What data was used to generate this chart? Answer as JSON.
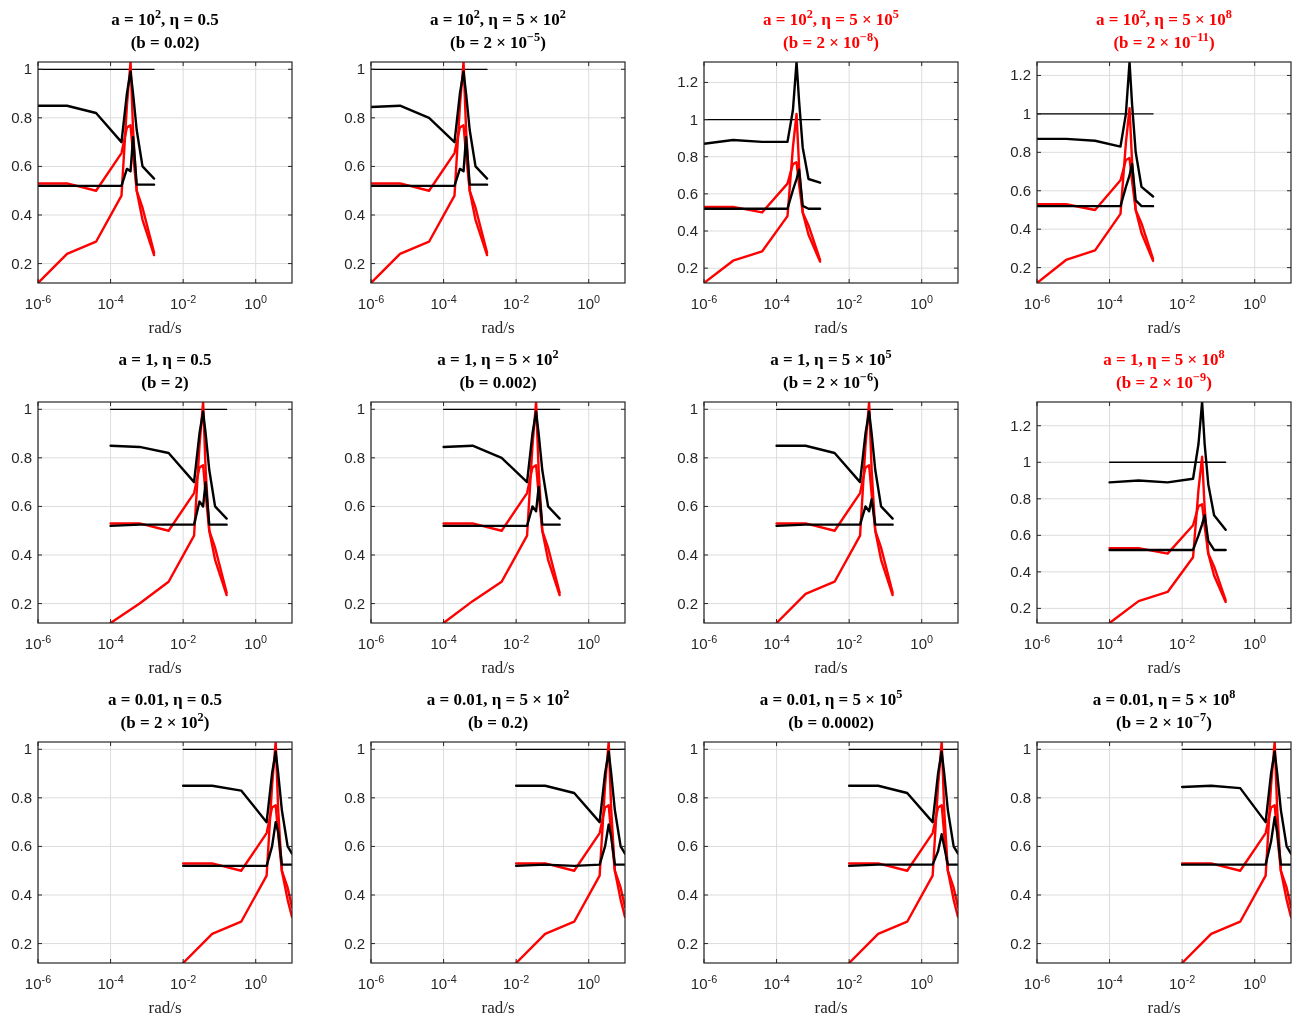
{
  "chart_data": [
    {
      "type": "line",
      "title": "a = 10$^{2}$, η = 0.5",
      "subtitle": "(b = 0.02)",
      "xlabel": "rad/s",
      "log": "x",
      "grid": true,
      "xlim": [
        1e-06,
        10
      ],
      "ylim": [
        0.12,
        1.03
      ],
      "xticks": [
        {
          "value": 1e-06,
          "label": "10$^{-6}$"
        },
        {
          "value": 0.0001,
          "label": "10$^{-4}$"
        },
        {
          "value": 0.01,
          "label": "10$^{-2}$"
        },
        {
          "value": 1,
          "label": "10$^{0}$"
        }
      ],
      "yticks": [
        0.2,
        0.4,
        0.6,
        0.8,
        1
      ],
      "x": [
        1e-06,
        6.31e-06,
        3.98e-05,
        0.0002,
        0.000282,
        0.000355,
        0.000417,
        0.000525,
        0.000759,
        0.00158
      ],
      "series": [
        {
          "color": "#000000",
          "values": [
            1,
            1,
            1,
            1,
            1,
            1,
            1,
            1,
            1,
            1
          ]
        },
        {
          "color": "#ff0000",
          "values": [
            0.12,
            0.24,
            0.29,
            0.48,
            0.85,
            1.03,
            0.75,
            0.5,
            0.38,
            0.235
          ]
        },
        {
          "color": "#ff0000",
          "values": [
            0.53,
            0.53,
            0.5,
            0.655,
            0.76,
            0.77,
            0.65,
            0.5,
            0.43,
            0.245
          ]
        },
        {
          "color": "#000000",
          "values": [
            0.85,
            0.85,
            0.82,
            0.7,
            0.9,
            0.99,
            0.9,
            0.75,
            0.6,
            0.55
          ]
        },
        {
          "color": "#000000",
          "values": [
            0.52,
            0.52,
            0.52,
            0.52,
            0.59,
            0.58,
            0.72,
            0.525,
            0.525,
            0.525
          ]
        }
      ]
    },
    {
      "type": "line",
      "title": "a = 10$^{2}$, η = 5 × 10$^{2}$",
      "subtitle": "(b = 2 × 10$^{−5}$)",
      "xlabel": "rad/s",
      "log": "x",
      "grid": true,
      "xlim": [
        1e-06,
        10
      ],
      "ylim": [
        0.12,
        1.03
      ],
      "xticks": [
        {
          "value": 1e-06,
          "label": "10$^{-6}$"
        },
        {
          "value": 0.0001,
          "label": "10$^{-4}$"
        },
        {
          "value": 0.01,
          "label": "10$^{-2}$"
        },
        {
          "value": 1,
          "label": "10$^{0}$"
        }
      ],
      "yticks": [
        0.2,
        0.4,
        0.6,
        0.8,
        1
      ],
      "x": [
        1e-06,
        6.31e-06,
        3.98e-05,
        0.0002,
        0.000282,
        0.000355,
        0.000417,
        0.000525,
        0.000759,
        0.00158
      ],
      "series": [
        {
          "color": "#000000",
          "values": [
            1,
            1,
            1,
            1,
            1,
            1,
            1,
            1,
            1,
            1
          ]
        },
        {
          "color": "#ff0000",
          "values": [
            0.12,
            0.24,
            0.29,
            0.48,
            0.85,
            1.03,
            0.75,
            0.5,
            0.38,
            0.235
          ]
        },
        {
          "color": "#ff0000",
          "values": [
            0.53,
            0.53,
            0.5,
            0.655,
            0.76,
            0.77,
            0.65,
            0.5,
            0.43,
            0.245
          ]
        },
        {
          "color": "#000000",
          "values": [
            0.845,
            0.85,
            0.8,
            0.7,
            0.9,
            0.99,
            0.9,
            0.75,
            0.6,
            0.55
          ]
        },
        {
          "color": "#000000",
          "values": [
            0.52,
            0.52,
            0.52,
            0.52,
            0.59,
            0.58,
            0.72,
            0.525,
            0.525,
            0.525
          ]
        }
      ]
    },
    {
      "type": "line",
      "title": "a = 10$^{2}$, η = 5 × 10$^{5}$",
      "subtitle": "(b = 2 × 10$^{−8}$)",
      "xlabel": "rad/s",
      "log": "x",
      "grid": true,
      "xlim": [
        1e-06,
        10
      ],
      "ylim": [
        0.12,
        1.31
      ],
      "xticks": [
        {
          "value": 1e-06,
          "label": "10$^{-6}$"
        },
        {
          "value": 0.0001,
          "label": "10$^{-4}$"
        },
        {
          "value": 0.01,
          "label": "10$^{-2}$"
        },
        {
          "value": 1,
          "label": "10$^{0}$"
        }
      ],
      "yticks": [
        0.2,
        0.4,
        0.6,
        0.8,
        1,
        1.2
      ],
      "x": [
        1e-06,
        6.31e-06,
        3.98e-05,
        0.0002,
        0.000282,
        0.000355,
        0.000417,
        0.000525,
        0.000759,
        0.00158
      ],
      "series": [
        {
          "color": "#000000",
          "values": [
            1,
            1,
            1,
            1,
            1,
            1,
            1,
            1,
            1,
            1
          ]
        },
        {
          "color": "#ff0000",
          "values": [
            0.12,
            0.24,
            0.29,
            0.48,
            0.85,
            1.03,
            0.75,
            0.5,
            0.38,
            0.235
          ]
        },
        {
          "color": "#ff0000",
          "values": [
            0.53,
            0.53,
            0.5,
            0.655,
            0.76,
            0.77,
            0.65,
            0.5,
            0.43,
            0.245
          ]
        },
        {
          "color": "#000000",
          "values": [
            0.87,
            0.89,
            0.88,
            0.88,
            1.05,
            1.31,
            1.1,
            0.85,
            0.68,
            0.66
          ]
        },
        {
          "color": "#000000",
          "values": [
            0.52,
            0.52,
            0.52,
            0.52,
            0.62,
            0.68,
            0.73,
            0.535,
            0.52,
            0.52
          ]
        }
      ]
    },
    {
      "type": "line",
      "title": "a = 10$^{2}$, η = 5 × 10$^{8}$",
      "subtitle": "(b = 2 × 10$^{−11}$)",
      "xlabel": "rad/s",
      "log": "x",
      "grid": true,
      "xlim": [
        1e-06,
        10
      ],
      "ylim": [
        0.12,
        1.27
      ],
      "xticks": [
        {
          "value": 1e-06,
          "label": "10$^{-6}$"
        },
        {
          "value": 0.0001,
          "label": "10$^{-4}$"
        },
        {
          "value": 0.01,
          "label": "10$^{-2}$"
        },
        {
          "value": 1,
          "label": "10$^{0}$"
        }
      ],
      "yticks": [
        0.2,
        0.4,
        0.6,
        0.8,
        1,
        1.2
      ],
      "x": [
        1e-06,
        6.31e-06,
        3.98e-05,
        0.0002,
        0.000282,
        0.000355,
        0.000417,
        0.000525,
        0.000759,
        0.00158
      ],
      "series": [
        {
          "color": "#000000",
          "values": [
            1,
            1,
            1,
            1,
            1,
            1,
            1,
            1,
            1,
            1
          ]
        },
        {
          "color": "#ff0000",
          "values": [
            0.12,
            0.24,
            0.29,
            0.48,
            0.85,
            1.03,
            0.75,
            0.5,
            0.38,
            0.235
          ]
        },
        {
          "color": "#ff0000",
          "values": [
            0.53,
            0.53,
            0.5,
            0.655,
            0.76,
            0.77,
            0.65,
            0.5,
            0.43,
            0.245
          ]
        },
        {
          "color": "#000000",
          "values": [
            0.87,
            0.87,
            0.86,
            0.83,
            1,
            1.27,
            1.05,
            0.8,
            0.62,
            0.57
          ]
        },
        {
          "color": "#000000",
          "values": [
            0.52,
            0.52,
            0.52,
            0.52,
            0.62,
            0.68,
            0.74,
            0.55,
            0.52,
            0.52
          ]
        }
      ]
    },
    {
      "type": "line",
      "title": "a = 1, η = 0.5",
      "subtitle": "(b = 2)",
      "xlabel": "rad/s",
      "log": "x",
      "grid": true,
      "xlim": [
        1e-06,
        10
      ],
      "ylim": [
        0.12,
        1.03
      ],
      "xticks": [
        {
          "value": 1e-06,
          "label": "10$^{-6}$"
        },
        {
          "value": 0.0001,
          "label": "10$^{-4}$"
        },
        {
          "value": 0.01,
          "label": "10$^{-2}$"
        },
        {
          "value": 1,
          "label": "10$^{0}$"
        }
      ],
      "yticks": [
        0.2,
        0.4,
        0.6,
        0.8,
        1
      ],
      "x": [
        0.0001,
        0.000631,
        0.00398,
        0.02,
        0.0282,
        0.0355,
        0.0417,
        0.0525,
        0.0759,
        0.158
      ],
      "series": [
        {
          "color": "#000000",
          "values": [
            1,
            1,
            1,
            1,
            1,
            1,
            1,
            1,
            1,
            1
          ]
        },
        {
          "color": "#ff0000",
          "values": [
            0.12,
            0.2,
            0.29,
            0.48,
            0.85,
            1.03,
            0.75,
            0.5,
            0.38,
            0.235
          ]
        },
        {
          "color": "#ff0000",
          "values": [
            0.53,
            0.53,
            0.5,
            0.655,
            0.76,
            0.77,
            0.65,
            0.5,
            0.43,
            0.245
          ]
        },
        {
          "color": "#000000",
          "values": [
            0.85,
            0.845,
            0.82,
            0.7,
            0.9,
            0.99,
            0.9,
            0.75,
            0.6,
            0.55
          ]
        },
        {
          "color": "#000000",
          "values": [
            0.52,
            0.525,
            0.525,
            0.525,
            0.62,
            0.6,
            0.7,
            0.525,
            0.525,
            0.525
          ]
        }
      ]
    },
    {
      "type": "line",
      "title": "a = 1, η = 5 × 10$^{2}$",
      "subtitle": "(b = 0.002)",
      "xlabel": "rad/s",
      "log": "x",
      "grid": true,
      "xlim": [
        1e-06,
        10
      ],
      "ylim": [
        0.12,
        1.03
      ],
      "xticks": [
        {
          "value": 1e-06,
          "label": "10$^{-6}$"
        },
        {
          "value": 0.0001,
          "label": "10$^{-4}$"
        },
        {
          "value": 0.01,
          "label": "10$^{-2}$"
        },
        {
          "value": 1,
          "label": "10$^{0}$"
        }
      ],
      "yticks": [
        0.2,
        0.4,
        0.6,
        0.8,
        1
      ],
      "x": [
        0.0001,
        0.000631,
        0.00398,
        0.02,
        0.0282,
        0.0355,
        0.0417,
        0.0525,
        0.0759,
        0.158
      ],
      "series": [
        {
          "color": "#000000",
          "values": [
            1,
            1,
            1,
            1,
            1,
            1,
            1,
            1,
            1,
            1
          ]
        },
        {
          "color": "#ff0000",
          "values": [
            0.12,
            0.21,
            0.29,
            0.48,
            0.85,
            1.03,
            0.75,
            0.5,
            0.38,
            0.235
          ]
        },
        {
          "color": "#ff0000",
          "values": [
            0.53,
            0.53,
            0.5,
            0.655,
            0.76,
            0.77,
            0.65,
            0.5,
            0.43,
            0.245
          ]
        },
        {
          "color": "#000000",
          "values": [
            0.845,
            0.85,
            0.8,
            0.7,
            0.9,
            0.99,
            0.9,
            0.75,
            0.6,
            0.55
          ]
        },
        {
          "color": "#000000",
          "values": [
            0.52,
            0.52,
            0.52,
            0.52,
            0.6,
            0.58,
            0.68,
            0.525,
            0.525,
            0.525
          ]
        }
      ]
    },
    {
      "type": "line",
      "title": "a = 1, η = 5 × 10$^{5}$",
      "subtitle": "(b = 2 × 10$^{−6}$)",
      "xlabel": "rad/s",
      "log": "x",
      "grid": true,
      "xlim": [
        1e-06,
        10
      ],
      "ylim": [
        0.12,
        1.03
      ],
      "xticks": [
        {
          "value": 1e-06,
          "label": "10$^{-6}$"
        },
        {
          "value": 0.0001,
          "label": "10$^{-4}$"
        },
        {
          "value": 0.01,
          "label": "10$^{-2}$"
        },
        {
          "value": 1,
          "label": "10$^{0}$"
        }
      ],
      "yticks": [
        0.2,
        0.4,
        0.6,
        0.8,
        1
      ],
      "x": [
        0.0001,
        0.000631,
        0.00398,
        0.02,
        0.0282,
        0.0355,
        0.0417,
        0.0525,
        0.0759,
        0.158
      ],
      "series": [
        {
          "color": "#000000",
          "values": [
            1,
            1,
            1,
            1,
            1,
            1,
            1,
            1,
            1,
            1
          ]
        },
        {
          "color": "#ff0000",
          "values": [
            0.12,
            0.24,
            0.29,
            0.48,
            0.85,
            1.03,
            0.75,
            0.5,
            0.38,
            0.235
          ]
        },
        {
          "color": "#ff0000",
          "values": [
            0.53,
            0.53,
            0.5,
            0.655,
            0.76,
            0.77,
            0.65,
            0.5,
            0.43,
            0.245
          ]
        },
        {
          "color": "#000000",
          "values": [
            0.85,
            0.85,
            0.82,
            0.7,
            0.9,
            0.99,
            0.9,
            0.75,
            0.6,
            0.55
          ]
        },
        {
          "color": "#000000",
          "values": [
            0.52,
            0.525,
            0.525,
            0.525,
            0.6,
            0.58,
            0.63,
            0.525,
            0.525,
            0.525
          ]
        }
      ]
    },
    {
      "type": "line",
      "title": "a = 1, η = 5 × 10$^{8}$",
      "subtitle": "(b = 2 × 10$^{−9}$)",
      "xlabel": "rad/s",
      "log": "x",
      "grid": true,
      "xlim": [
        1e-06,
        10
      ],
      "ylim": [
        0.12,
        1.33
      ],
      "xticks": [
        {
          "value": 1e-06,
          "label": "10$^{-6}$"
        },
        {
          "value": 0.0001,
          "label": "10$^{-4}$"
        },
        {
          "value": 0.01,
          "label": "10$^{-2}$"
        },
        {
          "value": 1,
          "label": "10$^{0}$"
        }
      ],
      "yticks": [
        0.2,
        0.4,
        0.6,
        0.8,
        1,
        1.2
      ],
      "x": [
        0.0001,
        0.000631,
        0.00398,
        0.02,
        0.0282,
        0.0355,
        0.0417,
        0.0525,
        0.0759,
        0.158
      ],
      "series": [
        {
          "color": "#000000",
          "values": [
            1,
            1,
            1,
            1,
            1,
            1,
            1,
            1,
            1,
            1
          ]
        },
        {
          "color": "#ff0000",
          "values": [
            0.12,
            0.24,
            0.29,
            0.48,
            0.85,
            1.03,
            0.75,
            0.5,
            0.38,
            0.235
          ]
        },
        {
          "color": "#ff0000",
          "values": [
            0.53,
            0.53,
            0.5,
            0.655,
            0.76,
            0.77,
            0.65,
            0.5,
            0.43,
            0.245
          ]
        },
        {
          "color": "#000000",
          "values": [
            0.89,
            0.9,
            0.89,
            0.91,
            1.1,
            1.33,
            1.1,
            0.88,
            0.71,
            0.63
          ]
        },
        {
          "color": "#000000",
          "values": [
            0.52,
            0.52,
            0.52,
            0.52,
            0.6,
            0.66,
            0.71,
            0.57,
            0.52,
            0.52
          ]
        }
      ]
    },
    {
      "type": "line",
      "title": "a = 0.01, η = 0.5",
      "subtitle": "(b = 2 × 10$^{2}$)",
      "xlabel": "rad/s",
      "log": "x",
      "grid": true,
      "xlim": [
        1e-06,
        10
      ],
      "ylim": [
        0.12,
        1.03
      ],
      "xticks": [
        {
          "value": 1e-06,
          "label": "10$^{-6}$"
        },
        {
          "value": 0.0001,
          "label": "10$^{-4}$"
        },
        {
          "value": 0.01,
          "label": "10$^{-2}$"
        },
        {
          "value": 1,
          "label": "10$^{0}$"
        }
      ],
      "yticks": [
        0.2,
        0.4,
        0.6,
        0.8,
        1
      ],
      "x": [
        0.01,
        0.0631,
        0.398,
        2,
        2.82,
        3.55,
        4.17,
        5.25,
        7.59,
        10
      ],
      "series": [
        {
          "color": "#000000",
          "values": [
            1,
            1,
            1,
            1,
            1,
            1,
            1,
            1,
            1,
            1
          ]
        },
        {
          "color": "#ff0000",
          "values": [
            0.12,
            0.24,
            0.29,
            0.48,
            0.85,
            1.03,
            0.75,
            0.5,
            0.38,
            0.31
          ]
        },
        {
          "color": "#ff0000",
          "values": [
            0.53,
            0.53,
            0.5,
            0.655,
            0.76,
            0.77,
            0.65,
            0.5,
            0.43,
            0.35
          ]
        },
        {
          "color": "#000000",
          "values": [
            0.85,
            0.85,
            0.83,
            0.7,
            0.9,
            0.99,
            0.9,
            0.75,
            0.6,
            0.57
          ]
        },
        {
          "color": "#000000",
          "values": [
            0.52,
            0.52,
            0.52,
            0.52,
            0.6,
            0.7,
            0.66,
            0.525,
            0.525,
            0.525
          ]
        }
      ]
    },
    {
      "type": "line",
      "title": "a = 0.01, η = 5 × 10$^{2}$",
      "subtitle": "(b = 0.2)",
      "xlabel": "rad/s",
      "log": "x",
      "grid": true,
      "xlim": [
        1e-06,
        10
      ],
      "ylim": [
        0.12,
        1.03
      ],
      "xticks": [
        {
          "value": 1e-06,
          "label": "10$^{-6}$"
        },
        {
          "value": 0.0001,
          "label": "10$^{-4}$"
        },
        {
          "value": 0.01,
          "label": "10$^{-2}$"
        },
        {
          "value": 1,
          "label": "10$^{0}$"
        }
      ],
      "yticks": [
        0.2,
        0.4,
        0.6,
        0.8,
        1
      ],
      "x": [
        0.01,
        0.0631,
        0.398,
        2,
        2.82,
        3.55,
        4.17,
        5.25,
        7.59,
        10
      ],
      "series": [
        {
          "color": "#000000",
          "values": [
            1,
            1,
            1,
            1,
            1,
            1,
            1,
            1,
            1,
            1
          ]
        },
        {
          "color": "#ff0000",
          "values": [
            0.12,
            0.24,
            0.29,
            0.48,
            0.85,
            1.03,
            0.75,
            0.5,
            0.38,
            0.31
          ]
        },
        {
          "color": "#ff0000",
          "values": [
            0.53,
            0.53,
            0.5,
            0.655,
            0.76,
            0.77,
            0.65,
            0.5,
            0.43,
            0.35
          ]
        },
        {
          "color": "#000000",
          "values": [
            0.85,
            0.85,
            0.82,
            0.7,
            0.9,
            0.99,
            0.9,
            0.75,
            0.6,
            0.57
          ]
        },
        {
          "color": "#000000",
          "values": [
            0.52,
            0.525,
            0.52,
            0.525,
            0.6,
            0.69,
            0.64,
            0.525,
            0.525,
            0.525
          ]
        }
      ]
    },
    {
      "type": "line",
      "title": "a = 0.01, η = 5 × 10$^{5}$",
      "subtitle": "(b = 0.0002)",
      "xlabel": "rad/s",
      "log": "x",
      "grid": true,
      "xlim": [
        1e-06,
        10
      ],
      "ylim": [
        0.12,
        1.03
      ],
      "xticks": [
        {
          "value": 1e-06,
          "label": "10$^{-6}$"
        },
        {
          "value": 0.0001,
          "label": "10$^{-4}$"
        },
        {
          "value": 0.01,
          "label": "10$^{-2}$"
        },
        {
          "value": 1,
          "label": "10$^{0}$"
        }
      ],
      "yticks": [
        0.2,
        0.4,
        0.6,
        0.8,
        1
      ],
      "x": [
        0.01,
        0.0631,
        0.398,
        2,
        2.82,
        3.55,
        4.17,
        5.25,
        7.59,
        10
      ],
      "series": [
        {
          "color": "#000000",
          "values": [
            1,
            1,
            1,
            1,
            1,
            1,
            1,
            1,
            1,
            1
          ]
        },
        {
          "color": "#ff0000",
          "values": [
            0.12,
            0.24,
            0.29,
            0.48,
            0.85,
            1.03,
            0.75,
            0.5,
            0.38,
            0.31
          ]
        },
        {
          "color": "#ff0000",
          "values": [
            0.53,
            0.53,
            0.5,
            0.655,
            0.76,
            0.77,
            0.65,
            0.5,
            0.43,
            0.35
          ]
        },
        {
          "color": "#000000",
          "values": [
            0.85,
            0.85,
            0.82,
            0.7,
            0.9,
            0.99,
            0.9,
            0.75,
            0.6,
            0.57
          ]
        },
        {
          "color": "#000000",
          "values": [
            0.52,
            0.525,
            0.525,
            0.525,
            0.58,
            0.65,
            0.6,
            0.525,
            0.525,
            0.525
          ]
        }
      ]
    },
    {
      "type": "line",
      "title": "a = 0.01, η = 5 × 10$^{8}$",
      "subtitle": "(b = 2 × 10$^{−7}$)",
      "xlabel": "rad/s",
      "log": "x",
      "grid": true,
      "xlim": [
        1e-06,
        10
      ],
      "ylim": [
        0.12,
        1.03
      ],
      "xticks": [
        {
          "value": 1e-06,
          "label": "10$^{-6}$"
        },
        {
          "value": 0.0001,
          "label": "10$^{-4}$"
        },
        {
          "value": 0.01,
          "label": "10$^{-2}$"
        },
        {
          "value": 1,
          "label": "10$^{0}$"
        }
      ],
      "yticks": [
        0.2,
        0.4,
        0.6,
        0.8,
        1
      ],
      "x": [
        0.01,
        0.0631,
        0.398,
        2,
        2.82,
        3.55,
        4.17,
        5.25,
        7.59,
        10
      ],
      "series": [
        {
          "color": "#000000",
          "values": [
            1,
            1,
            1,
            1,
            1,
            1,
            1,
            1,
            1,
            1
          ]
        },
        {
          "color": "#ff0000",
          "values": [
            0.12,
            0.24,
            0.29,
            0.48,
            0.85,
            1.03,
            0.75,
            0.5,
            0.38,
            0.31
          ]
        },
        {
          "color": "#ff0000",
          "values": [
            0.53,
            0.53,
            0.5,
            0.655,
            0.76,
            0.77,
            0.65,
            0.5,
            0.43,
            0.35
          ]
        },
        {
          "color": "#000000",
          "values": [
            0.845,
            0.85,
            0.84,
            0.7,
            0.9,
            0.99,
            0.9,
            0.75,
            0.6,
            0.57
          ]
        },
        {
          "color": "#000000",
          "values": [
            0.525,
            0.525,
            0.525,
            0.525,
            0.62,
            0.72,
            0.66,
            0.525,
            0.525,
            0.525
          ]
        }
      ]
    }
  ]
}
